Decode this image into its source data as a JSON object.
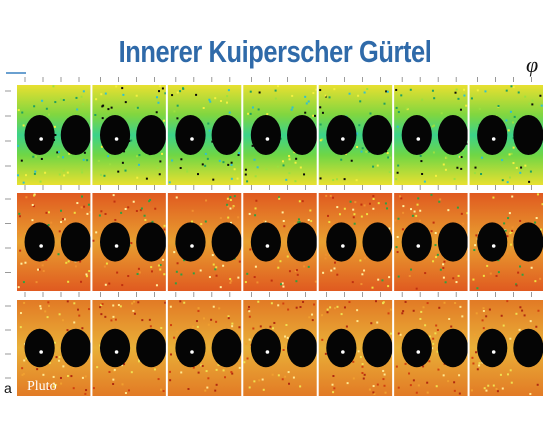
{
  "header": {
    "title": "Innerer Kuiperscher Gürtel",
    "symbol": "φ"
  },
  "figure": {
    "axis_label": "a",
    "annotation": "Pluto"
  }
}
